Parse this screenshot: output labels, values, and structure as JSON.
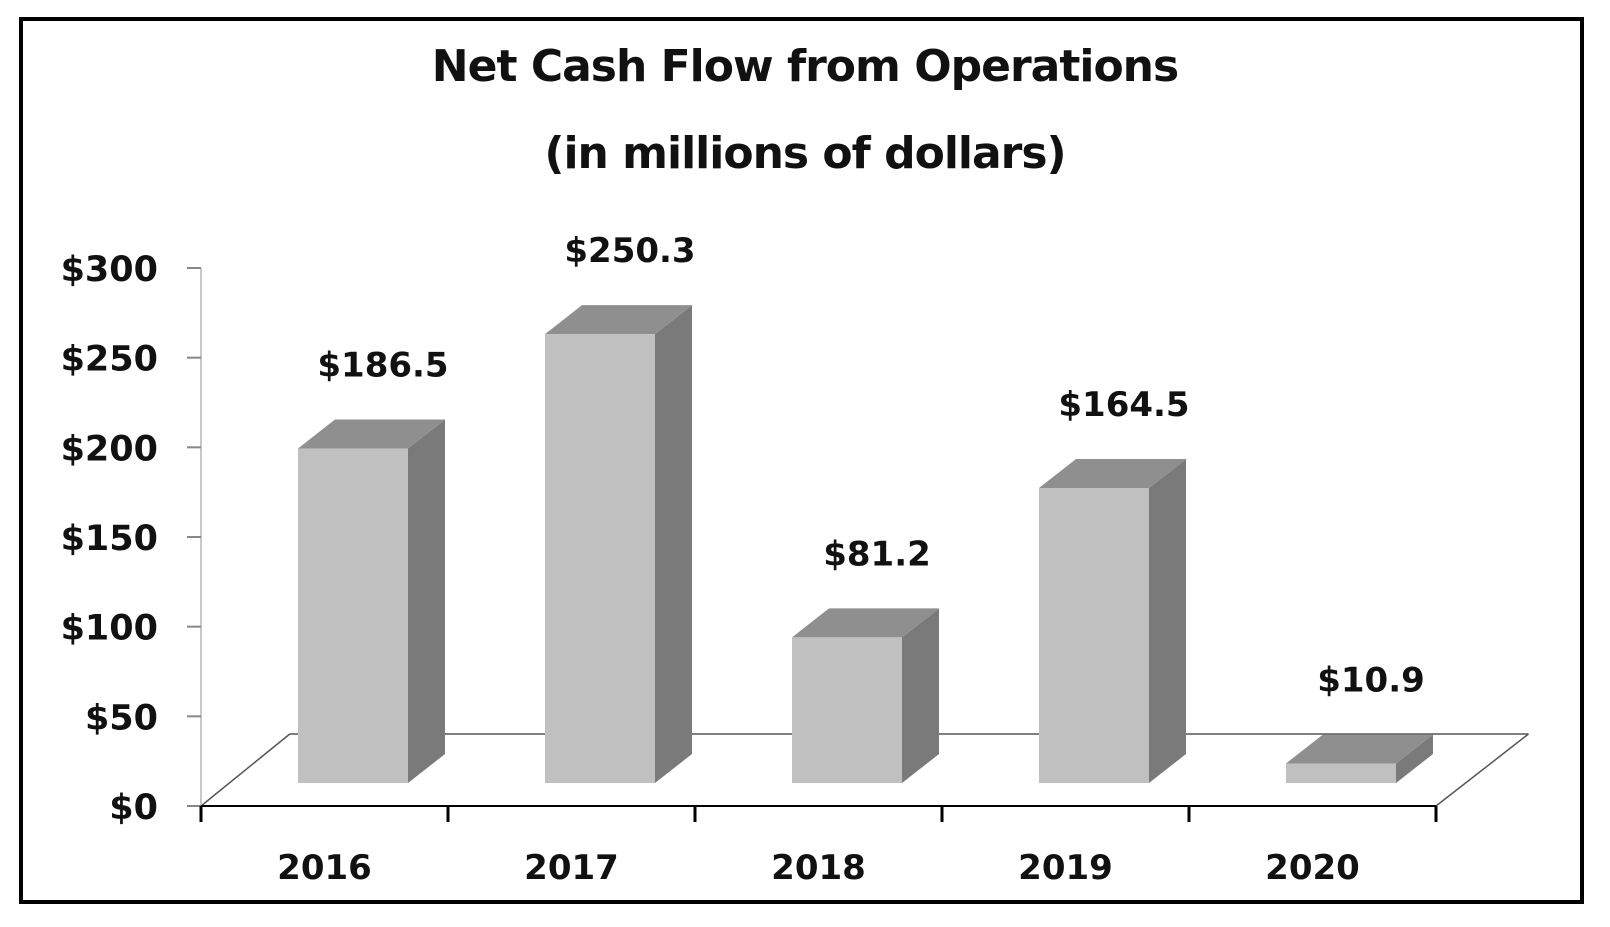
{
  "chart_data": {
    "type": "bar",
    "style": "3d-column",
    "title": "Net Cash Flow from Operations",
    "subtitle": "(in millions of dollars)",
    "categories": [
      "2016",
      "2017",
      "2018",
      "2019",
      "2020"
    ],
    "values": [
      186.5,
      250.3,
      81.2,
      164.5,
      10.9
    ],
    "data_labels": [
      "$186.5",
      "$250.3",
      "$81.2",
      "$164.5",
      "$10.9"
    ],
    "xlabel": "",
    "ylabel": "",
    "ylim": [
      0,
      300
    ],
    "yticks": [
      0,
      50,
      100,
      150,
      200,
      250,
      300
    ],
    "ytick_labels": [
      "$0",
      "$50",
      "$100",
      "$150",
      "$200",
      "$250",
      "$300"
    ],
    "grid": false,
    "legend": null,
    "colors": {
      "front": "#c0c0c0",
      "top": "#8f8f8f",
      "side": "#7a7a7a",
      "axis": "#000000",
      "floor_line": "#555555",
      "y_axis_line": "#c8c8c8"
    }
  },
  "title": {
    "line1": "Net Cash Flow from Operations",
    "line2": "(in millions of dollars)"
  }
}
